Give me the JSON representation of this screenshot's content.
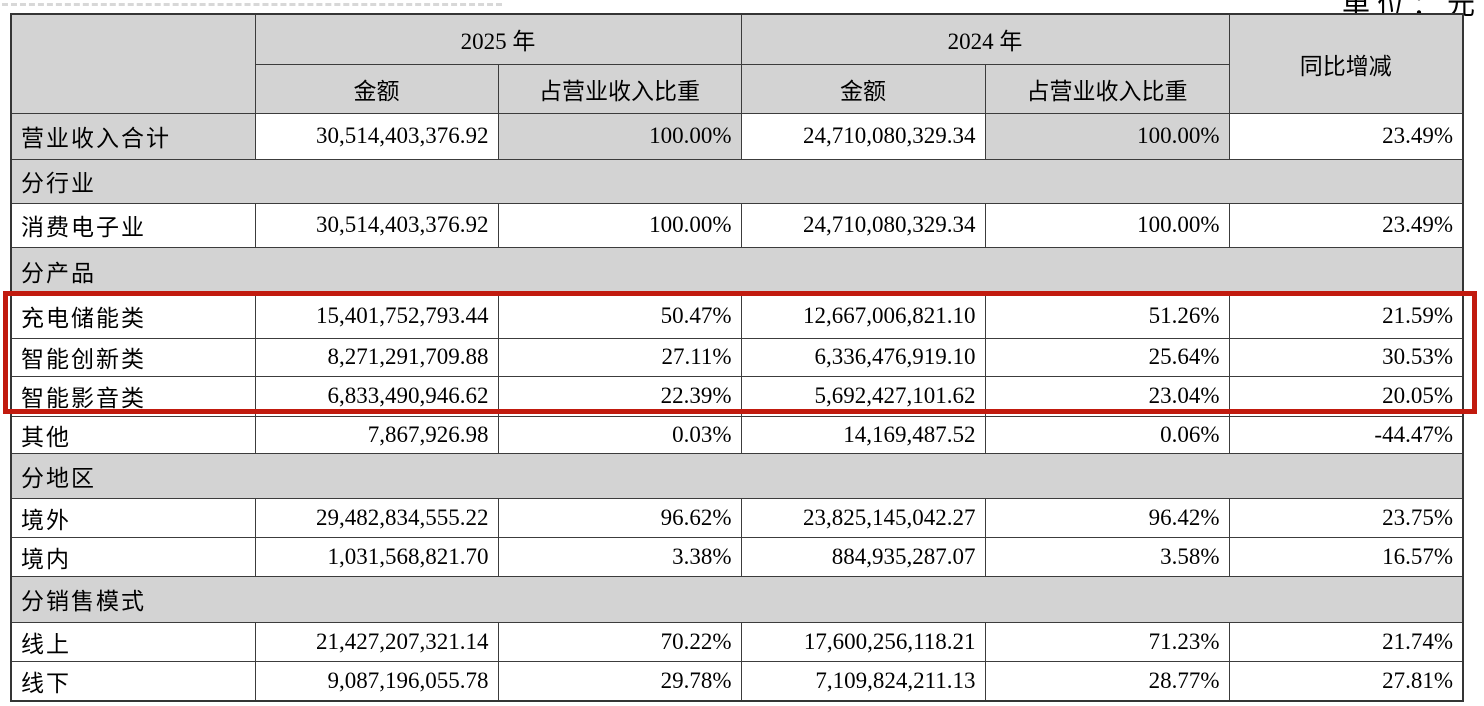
{
  "unit_note": "单位：元",
  "colors": {
    "header_gray": "#d3d3d3",
    "highlight_red": "#c11a0e"
  },
  "table": {
    "header": {
      "year_2025": "2025 年",
      "year_2024": "2024 年",
      "yoy": "同比增减",
      "amount": "金额",
      "proportion": "占营业收入比重"
    },
    "rows": [
      {
        "kind": "data",
        "label": "营业收入合计",
        "cells": [
          "30,514,403,376.92",
          "100.00%",
          "24,710,080,329.34",
          "100.00%",
          "23.49%"
        ],
        "shaded_cols": [
          0,
          2,
          4
        ]
      },
      {
        "kind": "section",
        "label": "分行业"
      },
      {
        "kind": "data",
        "label": "消费电子业",
        "cells": [
          "30,514,403,376.92",
          "100.00%",
          "24,710,080,329.34",
          "100.00%",
          "23.49%"
        ]
      },
      {
        "kind": "section",
        "label": "分产品"
      },
      {
        "kind": "data",
        "label": "充电储能类",
        "cells": [
          "15,401,752,793.44",
          "50.47%",
          "12,667,006,821.10",
          "51.26%",
          "21.59%"
        ],
        "highlighted": true
      },
      {
        "kind": "data",
        "label": "智能创新类",
        "cells": [
          "8,271,291,709.88",
          "27.11%",
          "6,336,476,919.10",
          "25.64%",
          "30.53%"
        ],
        "highlighted": true
      },
      {
        "kind": "data",
        "label": "智能影音类",
        "cells": [
          "6,833,490,946.62",
          "22.39%",
          "5,692,427,101.62",
          "23.04%",
          "20.05%"
        ],
        "highlighted": true
      },
      {
        "kind": "data",
        "label": "其他",
        "cells": [
          "7,867,926.98",
          "0.03%",
          "14,169,487.52",
          "0.06%",
          "-44.47%"
        ]
      },
      {
        "kind": "section",
        "label": "分地区"
      },
      {
        "kind": "data",
        "label": "境外",
        "cells": [
          "29,482,834,555.22",
          "96.62%",
          "23,825,145,042.27",
          "96.42%",
          "23.75%"
        ]
      },
      {
        "kind": "data",
        "label": "境内",
        "cells": [
          "1,031,568,821.70",
          "3.38%",
          "884,935,287.07",
          "3.58%",
          "16.57%"
        ]
      },
      {
        "kind": "section",
        "label": "分销售模式"
      },
      {
        "kind": "data",
        "label": "线上",
        "cells": [
          "21,427,207,321.14",
          "70.22%",
          "17,600,256,118.21",
          "71.23%",
          "21.74%"
        ]
      },
      {
        "kind": "data",
        "label": "线下",
        "cells": [
          "9,087,196,055.78",
          "29.78%",
          "7,109,824,211.13",
          "28.77%",
          "27.81%"
        ]
      }
    ]
  }
}
